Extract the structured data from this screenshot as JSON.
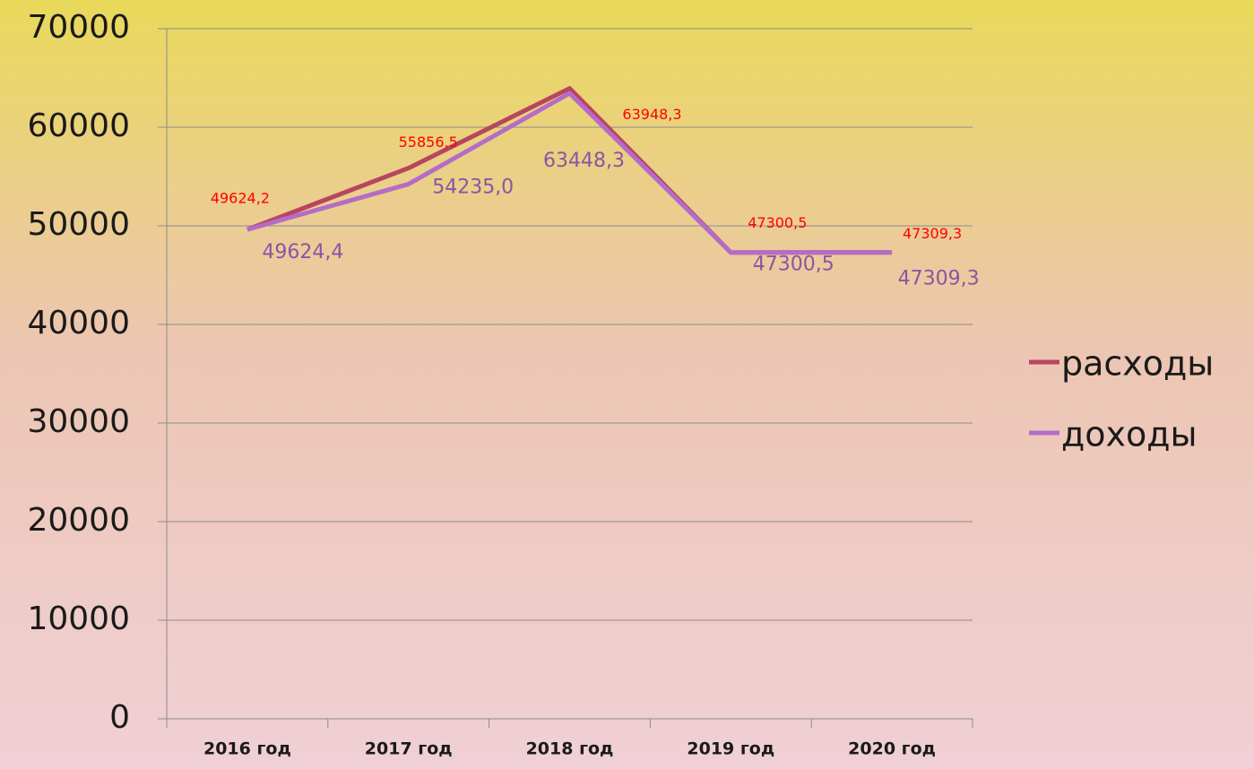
{
  "chart_data": {
    "type": "line",
    "categories": [
      "2016 год",
      "2017 год",
      "2018 год",
      "2019 год",
      "2020 год"
    ],
    "series": [
      {
        "name": "расходы",
        "color": "#b8455f",
        "label_color": "#ff0000",
        "values": [
          49624.2,
          55856.5,
          63948.3,
          47300.5,
          47309.3
        ],
        "value_labels": [
          "49624,2",
          "55856,5",
          "63948,3",
          "47300,5",
          "47309,3"
        ]
      },
      {
        "name": "доходы",
        "color": "#b46cc8",
        "label_color": "#8a55a6",
        "values": [
          49624.4,
          54235.0,
          63448.3,
          47300.5,
          47309.3
        ],
        "value_labels": [
          "49624,4",
          "54235,0",
          "63448,3",
          "47300,5",
          "47309,3"
        ]
      }
    ],
    "ylim": [
      0,
      70000
    ],
    "yticks": [
      0,
      10000,
      20000,
      30000,
      40000,
      50000,
      60000,
      70000
    ],
    "grid": true,
    "legend": "right"
  }
}
